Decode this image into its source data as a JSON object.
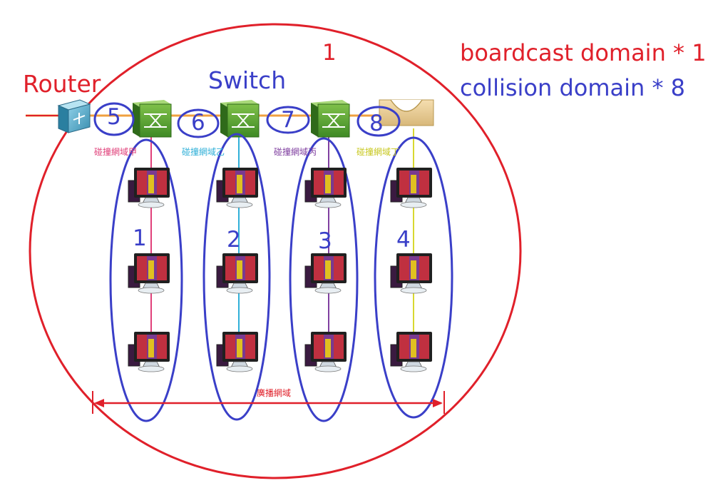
{
  "labels": {
    "router": "Router",
    "switch": "Switch",
    "broadcast_count": "1",
    "broadcast_domain": "boardcast domain * 1",
    "collision_domain": "collision domain * 8"
  },
  "collision_numbers": [
    "1",
    "2",
    "3",
    "4",
    "5",
    "6",
    "7",
    "8"
  ],
  "segment_labels": [
    "碰撞網域甲",
    "碰撞網域乙",
    "碰撞網域丙",
    "碰撞網域丁"
  ],
  "broadcast_label": "廣播網域",
  "colors": {
    "red": "#e0202a",
    "blue": "#3a3fc8",
    "bus": "#f0a040",
    "seg1": "#e0407a",
    "seg2": "#30b0d8",
    "seg3": "#8040a0",
    "seg4": "#d8d830"
  },
  "icons": [
    "router-icon",
    "switch-icon",
    "hub-icon",
    "computer-icon"
  ]
}
